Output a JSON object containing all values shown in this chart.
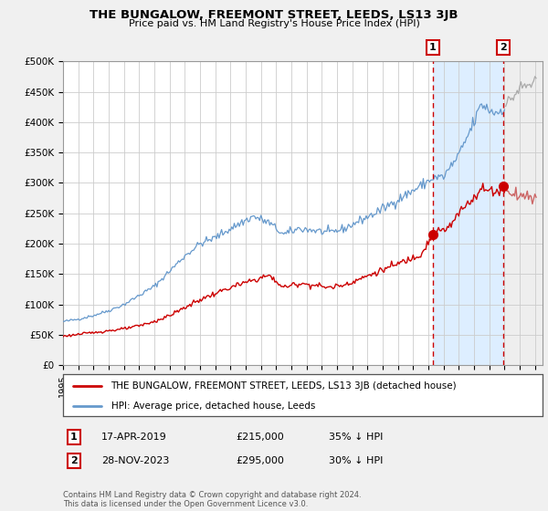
{
  "title": "THE BUNGALOW, FREEMONT STREET, LEEDS, LS13 3JB",
  "subtitle": "Price paid vs. HM Land Registry's House Price Index (HPI)",
  "property_color": "#cc0000",
  "hpi_color": "#6699cc",
  "background_color": "#f0f0f0",
  "plot_bg_color": "#ffffff",
  "shade_color": "#ddeeff",
  "future_color": "#e0e0e0",
  "ylim": [
    0,
    500000
  ],
  "xlim_start": 1995.0,
  "xlim_end": 2026.5,
  "yticks": [
    0,
    50000,
    100000,
    150000,
    200000,
    250000,
    300000,
    350000,
    400000,
    450000,
    500000
  ],
  "xtick_years": [
    1995,
    1996,
    1997,
    1998,
    1999,
    2000,
    2001,
    2002,
    2003,
    2004,
    2005,
    2006,
    2007,
    2008,
    2009,
    2010,
    2011,
    2012,
    2013,
    2014,
    2015,
    2016,
    2017,
    2018,
    2019,
    2020,
    2021,
    2022,
    2023,
    2024,
    2025,
    2026
  ],
  "sale1_year": 2019.29,
  "sale1_value": 215000,
  "sale1_label": "1",
  "sale2_year": 2023.92,
  "sale2_value": 295000,
  "sale2_label": "2",
  "sale1_date": "17-APR-2019",
  "sale1_price": "£215,000",
  "sale1_hpi": "35% ↓ HPI",
  "sale2_date": "28-NOV-2023",
  "sale2_price": "£295,000",
  "sale2_hpi": "30% ↓ HPI",
  "legend1": "THE BUNGALOW, FREEMONT STREET, LEEDS, LS13 3JB (detached house)",
  "legend2": "HPI: Average price, detached house, Leeds",
  "footnote": "Contains HM Land Registry data © Crown copyright and database right 2024.\nThis data is licensed under the Open Government Licence v3.0."
}
